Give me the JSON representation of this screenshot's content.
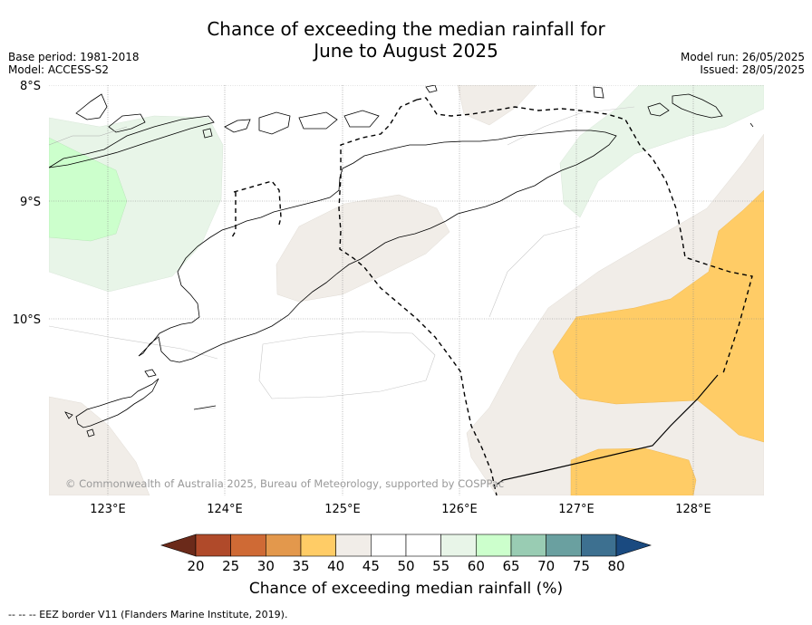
{
  "title": {
    "line1": "Chance of exceeding the median rainfall for",
    "line2": "June to August 2025"
  },
  "meta": {
    "base_period": "Base period: 1981-2018",
    "model": "Model: ACCESS-S2",
    "model_run": "Model run: 26/05/2025",
    "issued": "Issued: 28/05/2025"
  },
  "map": {
    "lat_labels": [
      "8°S",
      "9°S",
      "10°S"
    ],
    "lon_labels": [
      "123°E",
      "124°E",
      "125°E",
      "126°E",
      "127°E",
      "128°E"
    ],
    "copyright": "© Commonwealth of Australia 2025, Bureau of Meteorology, supported by COSPPac"
  },
  "colorbar": {
    "ticks": [
      "20",
      "25",
      "30",
      "35",
      "40",
      "45",
      "50",
      "55",
      "60",
      "65",
      "70",
      "75",
      "80"
    ],
    "colors": [
      "#6b2a1a",
      "#b04a2a",
      "#cf6a35",
      "#e3984c",
      "#ffcc66",
      "#f1ede8",
      "#ffffff",
      "#ffffff",
      "#e8f5e8",
      "#ccffcc",
      "#99ccb3",
      "#6aa0a0",
      "#3d7090",
      "#1a4a80"
    ],
    "title": "Chance of exceeding median rainfall (%)"
  },
  "footer": {
    "legend": "--  --  -- EEZ border V11 (Flanders Marine Institute, 2019)."
  }
}
